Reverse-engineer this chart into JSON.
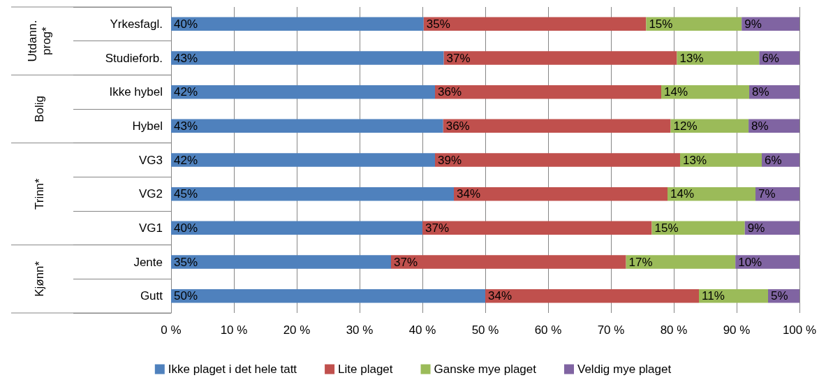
{
  "chart_data": {
    "type": "bar",
    "orientation": "horizontal",
    "stacked": true,
    "categories": [
      "Yrkesfagl.",
      "Studieforb.",
      "Ikke hybel",
      "Hybel",
      "VG3",
      "VG2",
      "VG1",
      "Jente",
      "Gutt"
    ],
    "annotations": [
      "Utdann.\nprog*",
      "Bolig",
      "Trinn*",
      "Kjønn*"
    ],
    "series": [
      {
        "name": "Ikke plaget i det hele tatt",
        "color": "#4f81bd",
        "values": [
          40.2,
          43.4,
          42,
          43.3,
          42,
          45,
          40,
          35,
          50
        ],
        "value_labels": [
          "40%",
          "43%",
          "42%",
          "43%",
          "42%",
          "45%",
          "40%",
          "35%",
          "50%"
        ]
      },
      {
        "name": "Lite plaget",
        "color": "#c0504d",
        "values": [
          35.4,
          37.1,
          36,
          36.2,
          39,
          34,
          36.5,
          37.4,
          34
        ],
        "value_labels": [
          "35%",
          "37%",
          "36%",
          "36%",
          "39%",
          "34%",
          "37%",
          "37%",
          "34%"
        ]
      },
      {
        "name": "Ganske mye plaget",
        "color": "#9bbb59",
        "values": [
          15.2,
          13.1,
          14,
          12.4,
          13,
          14,
          14.8,
          17.4,
          11
        ],
        "value_labels": [
          "15%",
          "13%",
          "14%",
          "12%",
          "13%",
          "14%",
          "15%",
          "17%",
          "11%"
        ]
      },
      {
        "name": "Veldig mye plaget",
        "color": "#8064a2",
        "values": [
          9.2,
          6.4,
          8,
          8.1,
          6,
          7,
          8.7,
          10.2,
          5
        ],
        "value_labels": [
          "9%",
          "6%",
          "8%",
          "8%",
          "6%",
          "7%",
          "9%",
          "10%",
          "5%"
        ]
      }
    ],
    "xlim": [
      0,
      100
    ],
    "xticks": [
      {
        "value": 0,
        "label": "0 %"
      },
      {
        "value": 10,
        "label": "10 %"
      },
      {
        "value": 20,
        "label": "20 %"
      },
      {
        "value": 30,
        "label": "30 %"
      },
      {
        "value": 40,
        "label": "40 %"
      },
      {
        "value": 50,
        "label": "50 %"
      },
      {
        "value": 60,
        "label": "60 %"
      },
      {
        "value": 70,
        "label": "70 %"
      },
      {
        "value": 80,
        "label": "80 %"
      },
      {
        "value": 90,
        "label": "90 %"
      },
      {
        "value": 100,
        "label": "100 %"
      }
    ],
    "grid": "x",
    "legend": "bottom"
  }
}
